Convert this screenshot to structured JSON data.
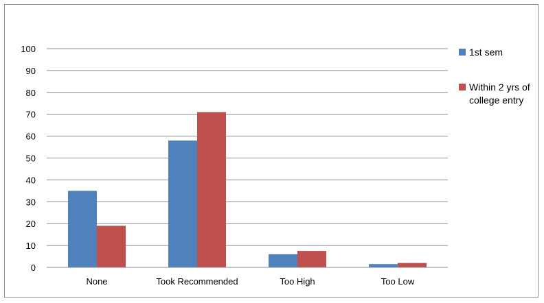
{
  "chart_data": {
    "type": "bar",
    "title": "",
    "xlabel": "",
    "ylabel": "",
    "categories": [
      "None",
      "Took Recommended",
      "Too High",
      "Too Low"
    ],
    "series": [
      {
        "name": "1st sem",
        "values": [
          35,
          58,
          6,
          1.5
        ],
        "color": "#4f81bd"
      },
      {
        "name": "Within 2 yrs of college entry",
        "values": [
          19,
          71,
          7.5,
          2
        ],
        "color": "#c0504d"
      }
    ],
    "ylim": [
      0,
      100
    ],
    "yticks": [
      "0",
      "10",
      "20",
      "30",
      "40",
      "50",
      "60",
      "70",
      "80",
      "90",
      "100"
    ],
    "grid": true,
    "legend_position": "right"
  }
}
